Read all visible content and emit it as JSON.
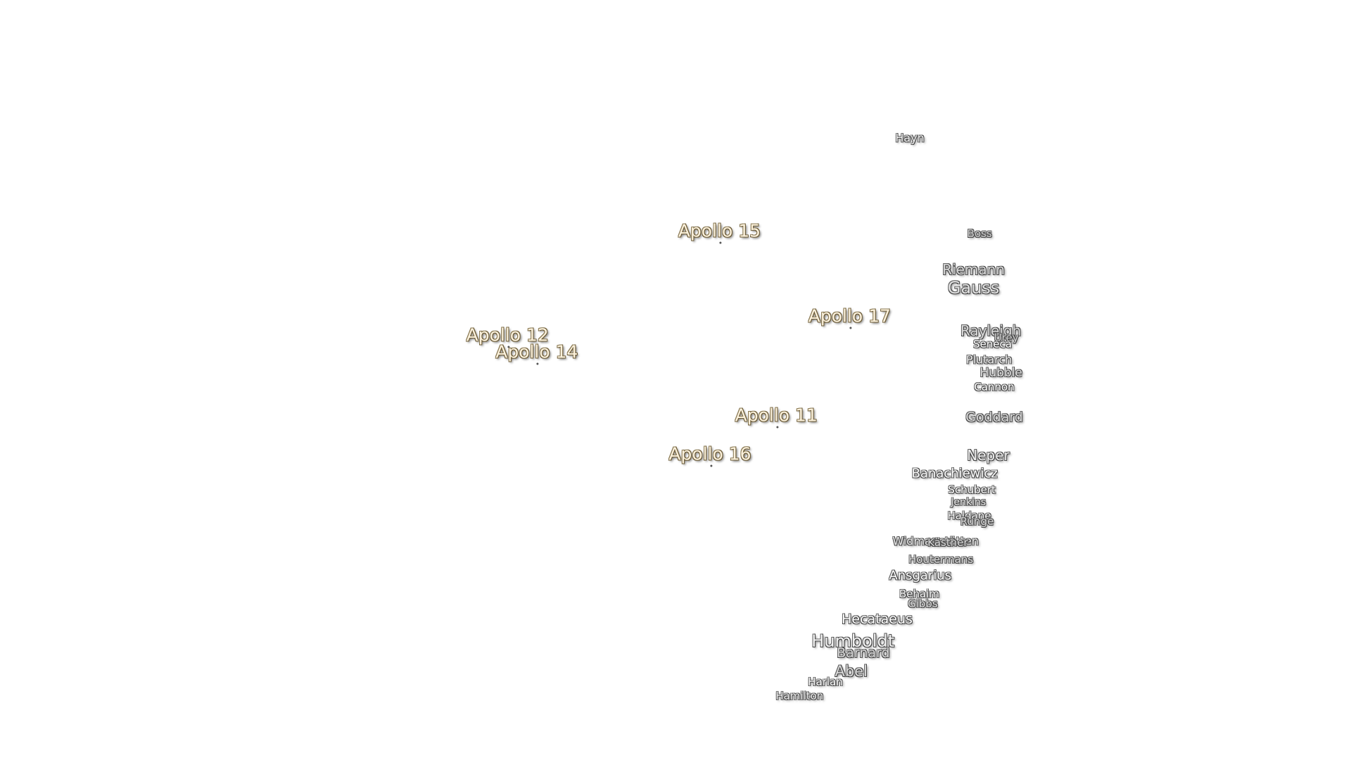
{
  "landing_sites": [
    "Apollo 15",
    "Apollo 17",
    "Apollo 12",
    "Apollo 14",
    "Apollo 11",
    "Apollo 16"
  ],
  "craters": [
    "Hayn",
    "Boss",
    "Riemann",
    "Gauss",
    "Rayleigh",
    "Urey",
    "Seneca",
    "Plutarch",
    "Hubble",
    "Cannon",
    "Goddard",
    "Neper",
    "Banachiewicz",
    "Schubert",
    "Jenkins",
    "Haldane",
    "Runge",
    "Widmanstätten",
    "Kästner",
    "Houtermans",
    "Ansgarius",
    "Behaim",
    "Gibbs",
    "Hecataeus",
    "Humboldt",
    "Barnard",
    "Abel",
    "Harlan",
    "Hamilton"
  ]
}
